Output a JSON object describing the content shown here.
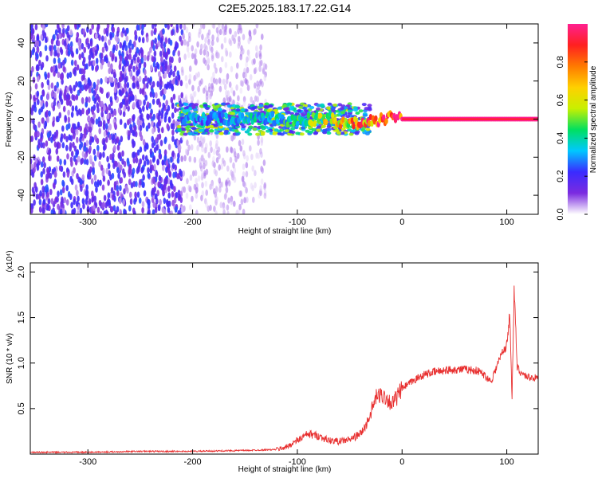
{
  "figure": {
    "title": "C2E5.2025.183.17.22.G14"
  },
  "colorbar": {
    "label": "Normalized spectral amplitude",
    "ticks": [
      "0.0",
      "0.2",
      "0.4",
      "0.6",
      "0.8"
    ],
    "tick_values": [
      0.0,
      0.2,
      0.4,
      0.6,
      0.8
    ],
    "range": [
      0,
      1
    ],
    "stops": [
      "#ffffff",
      "#7b2be0",
      "#3a2bff",
      "#00c8ff",
      "#00e060",
      "#c8f000",
      "#ffd000",
      "#ff7a00",
      "#ff2020",
      "#ff2090"
    ]
  },
  "chart_data": [
    {
      "type": "heatmap",
      "name_hint": "spectrogram",
      "xlabel": "Height of straight line (km)",
      "ylabel": "Frequency (Hz)",
      "xlim": [
        -355,
        130
      ],
      "ylim": [
        -50,
        50
      ],
      "x_ticks": [
        "-300",
        "-200",
        "-100",
        "0",
        "100"
      ],
      "x_tick_values": [
        -300,
        -200,
        -100,
        0,
        100
      ],
      "y_ticks": [
        "-40",
        "-20",
        "0",
        "20",
        "40"
      ],
      "y_tick_values": [
        -40,
        -20,
        0,
        20,
        40
      ],
      "regions": [
        {
          "x": [
            -355,
            -210
          ],
          "desc_value": 0.15,
          "spread_hz": 50
        },
        {
          "x": [
            -210,
            -130
          ],
          "desc_value": 0.05,
          "spread_hz": 50
        },
        {
          "x": [
            -215,
            -30
          ],
          "desc_value": 0.35,
          "spread_hz": 8
        }
      ],
      "ridge": [
        {
          "x": -210,
          "f": 0,
          "a": 0.3
        },
        {
          "x": -150,
          "f": 0,
          "a": 0.35
        },
        {
          "x": -120,
          "f": 0,
          "a": 0.4
        },
        {
          "x": -100,
          "f": -1,
          "a": 0.45
        },
        {
          "x": -80,
          "f": 0,
          "a": 0.55
        },
        {
          "x": -70,
          "f": 1,
          "a": 0.65
        },
        {
          "x": -60,
          "f": -2,
          "a": 0.7
        },
        {
          "x": -50,
          "f": -3,
          "a": 0.75
        },
        {
          "x": -40,
          "f": -2,
          "a": 0.8
        },
        {
          "x": -30,
          "f": -1,
          "a": 0.85
        },
        {
          "x": -20,
          "f": 0,
          "a": 0.9
        },
        {
          "x": -10,
          "f": 1,
          "a": 0.95
        },
        {
          "x": 0,
          "f": 0,
          "a": 1.0
        },
        {
          "x": 50,
          "f": 0,
          "a": 1.0
        },
        {
          "x": 100,
          "f": 0,
          "a": 1.0
        },
        {
          "x": 130,
          "f": 0,
          "a": 1.0
        }
      ]
    },
    {
      "type": "line",
      "xlabel": "Height of straight line (km)",
      "ylabel": "SNR (10 * v/v)",
      "y_multiplier_label": "(x10⁴)",
      "xlim": [
        -355,
        130
      ],
      "ylim": [
        0,
        2.1
      ],
      "x_ticks": [
        "-300",
        "-200",
        "-100",
        "0",
        "100"
      ],
      "x_tick_values": [
        -300,
        -200,
        -100,
        0,
        100
      ],
      "y_ticks": [
        "0.5",
        "1.0",
        "1.5",
        "2.0"
      ],
      "y_tick_values": [
        0.5,
        1.0,
        1.5,
        2.0
      ],
      "color": "#e83030",
      "series": [
        {
          "x": [
            -355,
            -300,
            -250,
            -200,
            -150,
            -120,
            -110,
            -100,
            -90,
            -80,
            -70,
            -60,
            -50,
            -40,
            -35,
            -30,
            -25,
            -20,
            -15,
            -10,
            -5,
            0,
            10,
            20,
            30,
            40,
            50,
            60,
            70,
            75,
            80,
            85,
            90,
            95,
            100,
            103,
            105,
            107,
            110,
            115,
            120,
            125,
            130
          ],
          "y": [
            0.02,
            0.02,
            0.03,
            0.03,
            0.04,
            0.05,
            0.08,
            0.15,
            0.22,
            0.2,
            0.15,
            0.14,
            0.16,
            0.22,
            0.3,
            0.45,
            0.62,
            0.65,
            0.62,
            0.55,
            0.62,
            0.72,
            0.8,
            0.87,
            0.9,
            0.92,
            0.93,
            0.93,
            0.92,
            0.9,
            0.85,
            0.8,
            0.95,
            1.1,
            1.2,
            1.55,
            0.6,
            1.8,
            0.95,
            0.88,
            0.85,
            0.84,
            0.83
          ]
        }
      ]
    }
  ]
}
